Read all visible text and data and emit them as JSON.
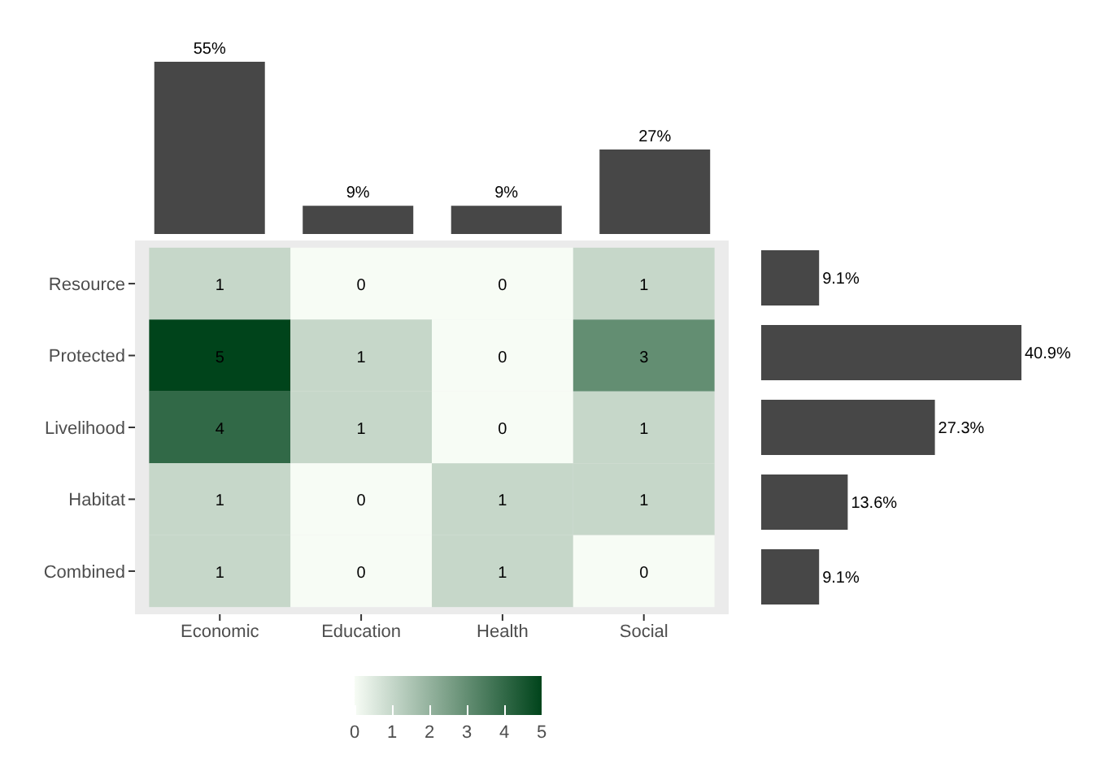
{
  "chart_data": [
    {
      "type": "bar",
      "categories": [
        null,
        null,
        null,
        null
      ],
      "values": [
        55,
        9,
        9,
        27
      ],
      "color": "#474747",
      "tick_labels": false,
      "value_labels": [
        "55%",
        "9%",
        "9%",
        "27%"
      ]
    },
    {
      "type": "heatmap",
      "categories": [
        "Economic",
        "Education",
        "Health",
        "Social"
      ],
      "y_categories": [
        "Resource",
        "Protected",
        "Livelihood",
        "Habitat",
        "Combined"
      ],
      "cells": [
        [
          1,
          0,
          0,
          1
        ],
        [
          5,
          1,
          0,
          3
        ],
        [
          4,
          1,
          0,
          1
        ],
        [
          1,
          0,
          1,
          1
        ],
        [
          1,
          0,
          1,
          0
        ]
      ],
      "data_labels": true,
      "clim": [
        0,
        5
      ],
      "cticks": [
        0,
        1,
        2,
        3,
        4,
        5
      ],
      "grid": false
    },
    {
      "type": "bar",
      "orientation": "horizontal",
      "categories": [
        null,
        null,
        null,
        null,
        null
      ],
      "values": [
        9.1,
        40.9,
        27.3,
        13.6,
        9.1
      ],
      "color": "#474747",
      "tick_labels": false,
      "value_labels": [
        "9.1%",
        "40.9%",
        "27.3%",
        "13.6%",
        "9.1%"
      ]
    }
  ]
}
